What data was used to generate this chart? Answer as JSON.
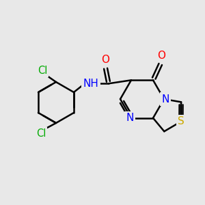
{
  "background_color": "#e8e8e8",
  "bond_color": "#000000",
  "atom_colors": {
    "O": "#ff0000",
    "N": "#0000ff",
    "S": "#ccaa00",
    "Cl": "#00aa00",
    "C": "#000000",
    "H": "#000000"
  },
  "figsize": [
    3.0,
    3.0
  ],
  "dpi": 100
}
